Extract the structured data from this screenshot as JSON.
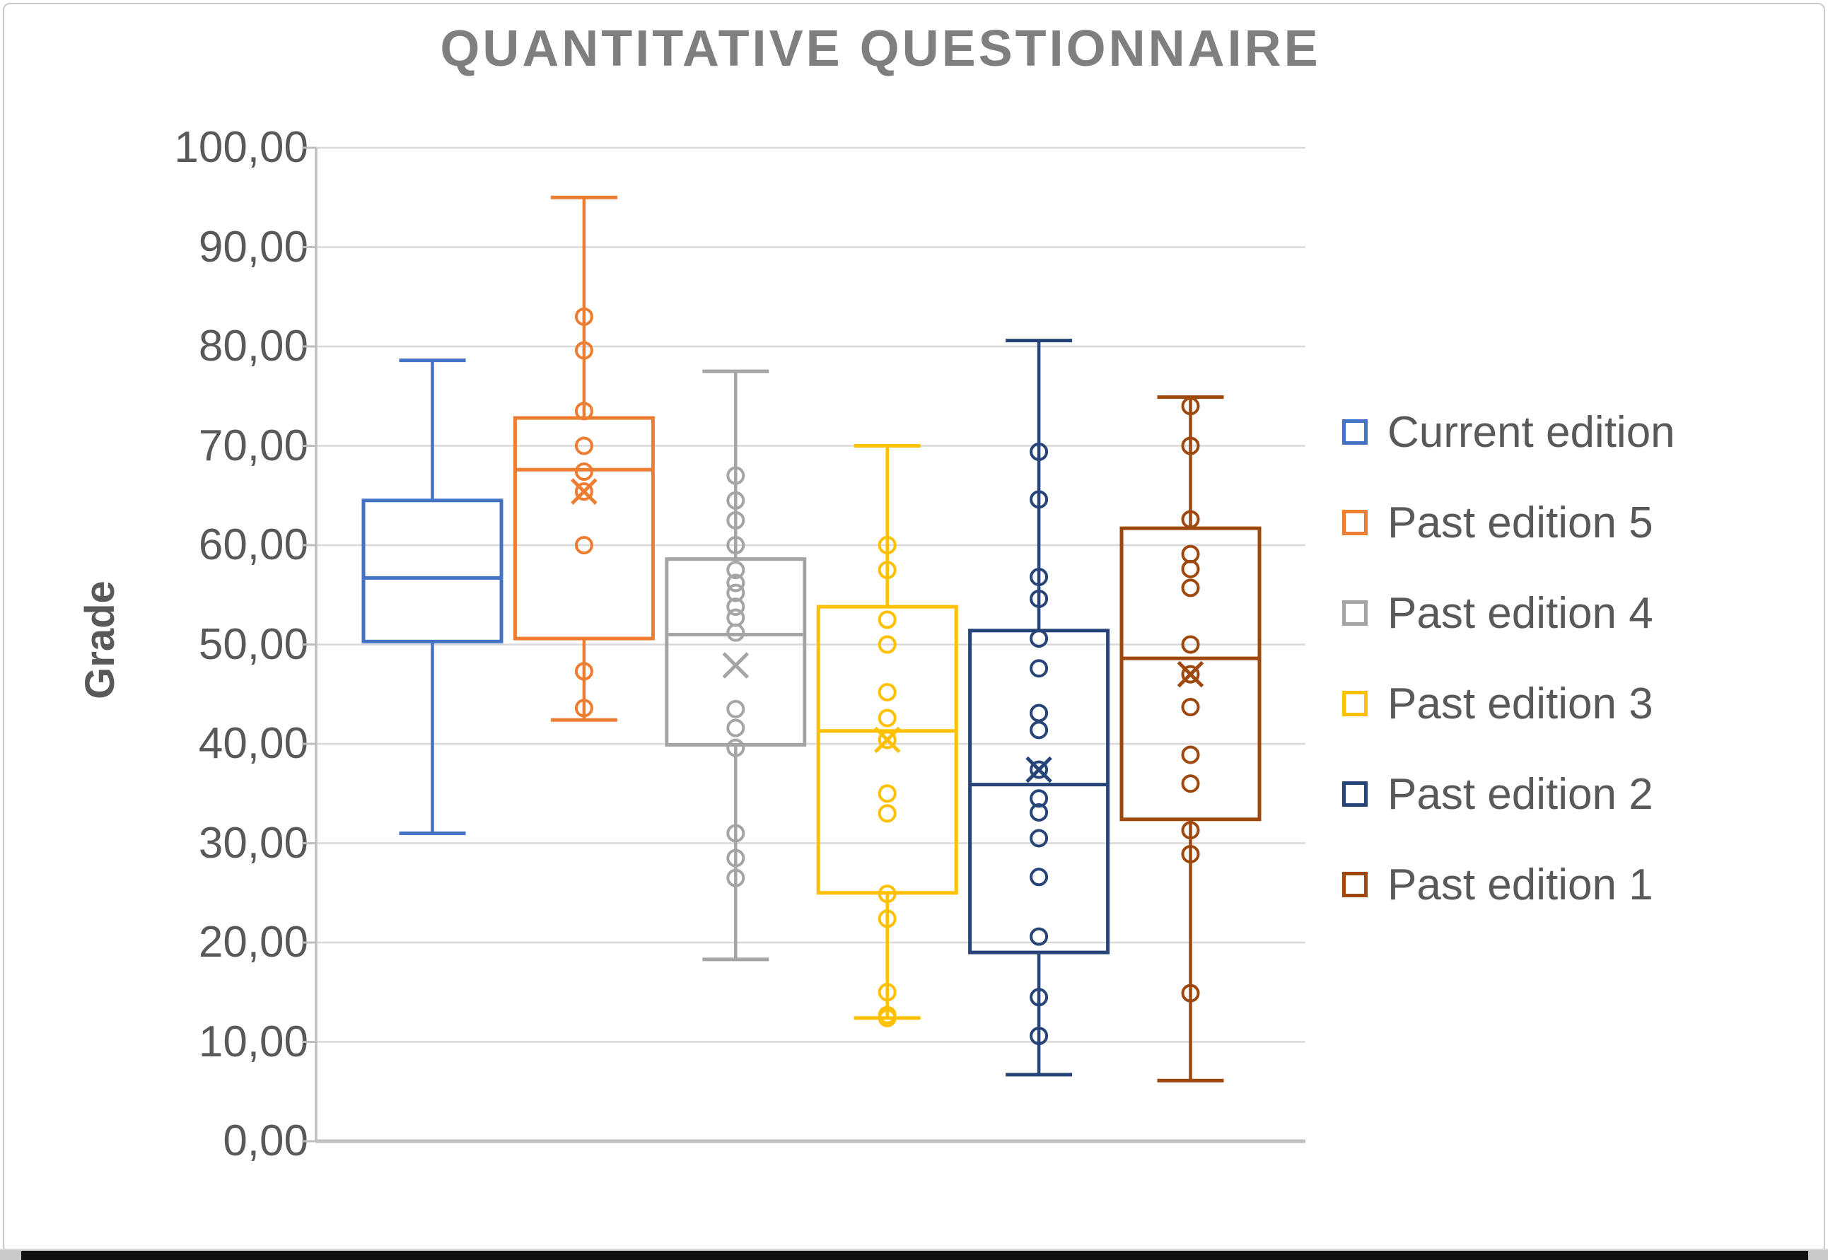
{
  "title": "QUANTITATIVE QUESTIONNAIRE",
  "y_axis": {
    "title": "Grade",
    "tick_labels": [
      "100,00",
      "90,00",
      "80,00",
      "70,00",
      "60,00",
      "50,00",
      "40,00",
      "30,00",
      "20,00",
      "10,00",
      "0,00"
    ],
    "min": 0,
    "max": 100,
    "step": 10
  },
  "colors": {
    "gridline": "#d9d9d9",
    "axis": "#bfbfbf",
    "title_text": "#7f7f7f",
    "label_text": "#595959"
  },
  "chart_data": {
    "type": "boxplot",
    "title": "QUANTITATIVE QUESTIONNAIRE",
    "ylabel": "Grade",
    "ylim": [
      0,
      100
    ],
    "grid": true,
    "legend_position": "right",
    "decimal_separator": ",",
    "series": [
      {
        "name": "Current edition",
        "color": "#4472C4",
        "whisker_low": 31.0,
        "q1": 50.3,
        "median": 56.7,
        "q3": 64.5,
        "whisker_high": 78.6,
        "mean": null,
        "points": []
      },
      {
        "name": "Past edition 5",
        "color": "#ED7D31",
        "whisker_low": 42.4,
        "q1": 50.6,
        "median": 67.6,
        "q3": 72.8,
        "whisker_high": 95.0,
        "mean": 65.4,
        "points": [
          83.0,
          79.6,
          73.5,
          70.0,
          67.4,
          65.4,
          60.0,
          47.3,
          43.6
        ]
      },
      {
        "name": "Past edition 4",
        "color": "#A5A5A5",
        "whisker_low": 18.3,
        "q1": 39.9,
        "median": 51.0,
        "q3": 58.6,
        "whisker_high": 77.5,
        "mean": 47.9,
        "points": [
          67.0,
          64.5,
          62.5,
          60.0,
          57.5,
          56.2,
          55.2,
          53.8,
          52.7,
          51.2,
          43.5,
          41.6,
          39.6,
          31.0,
          28.5,
          26.5
        ]
      },
      {
        "name": "Past edition 3",
        "color": "#FFC000",
        "whisker_low": 12.4,
        "q1": 25.0,
        "median": 41.3,
        "q3": 53.8,
        "whisker_high": 70.0,
        "mean": 40.4,
        "points": [
          60.0,
          57.5,
          52.5,
          50.0,
          45.2,
          42.6,
          40.4,
          35.0,
          33.0,
          24.9,
          22.4,
          15.0,
          12.7,
          12.4
        ]
      },
      {
        "name": "Past edition 2",
        "color": "#264478",
        "whisker_low": 6.7,
        "q1": 19.0,
        "median": 35.9,
        "q3": 51.4,
        "whisker_high": 80.6,
        "mean": 37.4,
        "points": [
          69.4,
          64.6,
          56.8,
          54.6,
          50.6,
          47.6,
          43.1,
          41.4,
          37.4,
          34.5,
          33.1,
          30.5,
          26.6,
          20.6,
          14.5,
          10.6
        ]
      },
      {
        "name": "Past edition 1",
        "color": "#9E480E",
        "whisker_low": 6.1,
        "q1": 32.4,
        "median": 48.6,
        "q3": 61.7,
        "whisker_high": 74.9,
        "mean": 47.0,
        "points": [
          74.0,
          70.0,
          62.6,
          59.1,
          57.6,
          55.7,
          50.0,
          47.0,
          43.7,
          38.9,
          36.0,
          31.3,
          28.9,
          14.9
        ]
      }
    ]
  }
}
